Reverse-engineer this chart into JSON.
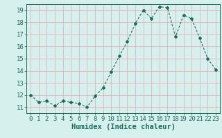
{
  "x": [
    0,
    1,
    2,
    3,
    4,
    5,
    6,
    7,
    8,
    9,
    10,
    11,
    12,
    13,
    14,
    15,
    16,
    17,
    18,
    19,
    20,
    21,
    22,
    23
  ],
  "y": [
    12.0,
    11.4,
    11.5,
    11.1,
    11.5,
    11.4,
    11.3,
    11.0,
    11.9,
    12.6,
    13.9,
    15.2,
    16.4,
    17.9,
    19.0,
    18.3,
    19.3,
    19.2,
    16.8,
    18.6,
    18.3,
    16.7,
    15.0,
    14.1
  ],
  "line_color": "#1a6b5a",
  "marker": "D",
  "marker_size": 2,
  "bg_color": "#d6f0ee",
  "grid_color": "#e8b0b0",
  "axis_color": "#1a6b5a",
  "xlabel": "Humidex (Indice chaleur)",
  "ylim": [
    10.5,
    19.5
  ],
  "xlim": [
    -0.5,
    23.5
  ],
  "yticks": [
    11,
    12,
    13,
    14,
    15,
    16,
    17,
    18,
    19
  ],
  "xticks": [
    0,
    1,
    2,
    3,
    4,
    5,
    6,
    7,
    8,
    9,
    10,
    11,
    12,
    13,
    14,
    15,
    16,
    17,
    18,
    19,
    20,
    21,
    22,
    23
  ],
  "tick_fontsize": 6.5,
  "xlabel_fontsize": 7.5
}
